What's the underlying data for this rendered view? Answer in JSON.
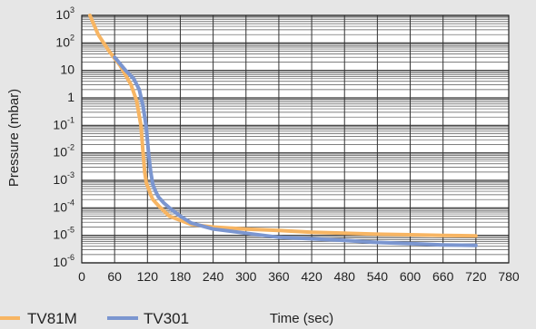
{
  "chart_data": {
    "type": "line",
    "title": "",
    "xlabel": "Time (sec)",
    "ylabel": "Pressure (mbar)",
    "xlim": [
      0,
      780
    ],
    "ylim": [
      1e-06,
      1000
    ],
    "y_scale": "log",
    "grid": true,
    "legend_position": "bottom-left",
    "x_ticks": [
      "0",
      "60",
      "120",
      "180",
      "240",
      "300",
      "360",
      "420",
      "480",
      "540",
      "600",
      "660",
      "720",
      "780"
    ],
    "y_ticks": [
      {
        "base": "10",
        "exp": "3"
      },
      {
        "base": "10",
        "exp": "2"
      },
      {
        "base": "10",
        "exp": ""
      },
      {
        "base": "1",
        "exp": ""
      },
      {
        "base": "10",
        "exp": "-1"
      },
      {
        "base": "10",
        "exp": "-2"
      },
      {
        "base": "10",
        "exp": "-3"
      },
      {
        "base": "10",
        "exp": "-4"
      },
      {
        "base": "10",
        "exp": "-5"
      },
      {
        "base": "10",
        "exp": "-6"
      }
    ],
    "series": [
      {
        "name": "TV81M",
        "color": "#f7b563",
        "x": [
          15,
          30,
          50,
          70,
          90,
          100,
          108,
          112,
          115,
          118,
          122,
          126,
          130,
          140,
          160,
          200,
          240,
          300,
          360,
          420,
          480,
          540,
          600,
          660,
          720
        ],
        "y": [
          1000,
          200,
          50,
          15,
          3,
          0.8,
          0.1,
          0.01,
          0.002,
          0.0008,
          0.0005,
          0.0003,
          0.0002,
          0.00012,
          5e-05,
          2.5e-05,
          2e-05,
          1.7e-05,
          1.5e-05,
          1.3e-05,
          1.2e-05,
          1.1e-05,
          1.05e-05,
          1e-05,
          9.5e-06
        ]
      },
      {
        "name": "TV301",
        "color": "#7b96d0",
        "x": [
          60,
          80,
          95,
          105,
          112,
          118,
          122,
          126,
          130,
          135,
          140,
          150,
          160,
          180,
          200,
          240,
          300,
          360,
          420,
          480,
          540,
          600,
          660,
          720
        ],
        "y": [
          30,
          10,
          5,
          2,
          0.5,
          0.08,
          0.01,
          0.002,
          0.0007,
          0.0004,
          0.00025,
          0.00015,
          0.0001,
          5e-05,
          2.8e-05,
          1.7e-05,
          1.2e-05,
          8.5e-06,
          7.5e-06,
          6.5e-06,
          5.5e-06,
          5e-06,
          4.5e-06,
          4.3e-06
        ]
      }
    ]
  }
}
